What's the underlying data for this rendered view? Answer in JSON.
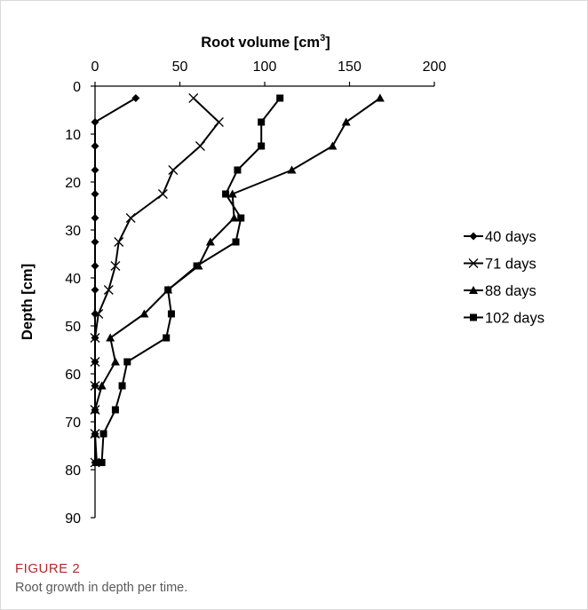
{
  "figure": {
    "label": "FIGURE 2",
    "caption": "Root growth in depth per time."
  },
  "chart_data": {
    "type": "line",
    "xlabel": "Root volume [cm",
    "xlabel_sup": "3",
    "xlabel_close": "]",
    "ylabel": "Depth [cm]",
    "xlim": [
      0,
      200
    ],
    "ylim": [
      0,
      90
    ],
    "y_inverted": true,
    "x_axis_position": "top",
    "xticks": [
      0,
      50,
      100,
      150,
      200
    ],
    "yticks": [
      0,
      10,
      20,
      30,
      40,
      50,
      60,
      70,
      80,
      90
    ],
    "grid": false,
    "legend_position": "right",
    "series": [
      {
        "name": "40 days",
        "marker": "diamond",
        "points": [
          [
            24,
            2.5
          ],
          [
            0,
            7.5
          ],
          [
            0,
            12.5
          ],
          [
            0,
            17.5
          ],
          [
            0,
            22.5
          ],
          [
            0,
            27.5
          ],
          [
            0,
            32.5
          ],
          [
            0,
            37.5
          ],
          [
            0,
            42.5
          ],
          [
            0,
            47.5
          ],
          [
            0,
            52.5
          ],
          [
            0,
            57.5
          ],
          [
            0,
            62.5
          ],
          [
            0,
            67.5
          ],
          [
            0,
            72.5
          ],
          [
            0,
            78.5
          ]
        ]
      },
      {
        "name": "71 days",
        "marker": "x",
        "points": [
          [
            58,
            2.5
          ],
          [
            73,
            7.5
          ],
          [
            62,
            12.5
          ],
          [
            46,
            17.5
          ],
          [
            40,
            22.5
          ],
          [
            21,
            27.5
          ],
          [
            14,
            32.5
          ],
          [
            12,
            37.5
          ],
          [
            8,
            42.5
          ],
          [
            2,
            47.5
          ],
          [
            0,
            52.5
          ],
          [
            0,
            57.5
          ],
          [
            0,
            62.5
          ],
          [
            0,
            67.5
          ],
          [
            0,
            72.5
          ],
          [
            0,
            78.5
          ]
        ]
      },
      {
        "name": "88 days",
        "marker": "triangle",
        "points": [
          [
            168,
            2.5
          ],
          [
            148,
            7.5
          ],
          [
            140,
            12.5
          ],
          [
            116,
            17.5
          ],
          [
            81,
            22.5
          ],
          [
            82,
            27.5
          ],
          [
            68,
            32.5
          ],
          [
            61,
            37.5
          ],
          [
            43,
            42.5
          ],
          [
            29,
            47.5
          ],
          [
            9,
            52.5
          ],
          [
            12,
            57.5
          ],
          [
            4,
            62.5
          ],
          [
            0,
            67.5
          ],
          [
            0,
            72.5
          ],
          [
            1,
            78.5
          ]
        ]
      },
      {
        "name": "102 days",
        "marker": "square",
        "points": [
          [
            109,
            2.5
          ],
          [
            98,
            7.5
          ],
          [
            98,
            12.5
          ],
          [
            84,
            17.5
          ],
          [
            77,
            22.5
          ],
          [
            86,
            27.5
          ],
          [
            83,
            32.5
          ],
          [
            60,
            37.5
          ],
          [
            43,
            42.5
          ],
          [
            45,
            47.5
          ],
          [
            42,
            52.5
          ],
          [
            19,
            57.5
          ],
          [
            16,
            62.5
          ],
          [
            12,
            67.5
          ],
          [
            5,
            72.5
          ],
          [
            4,
            78.5
          ]
        ]
      }
    ]
  }
}
